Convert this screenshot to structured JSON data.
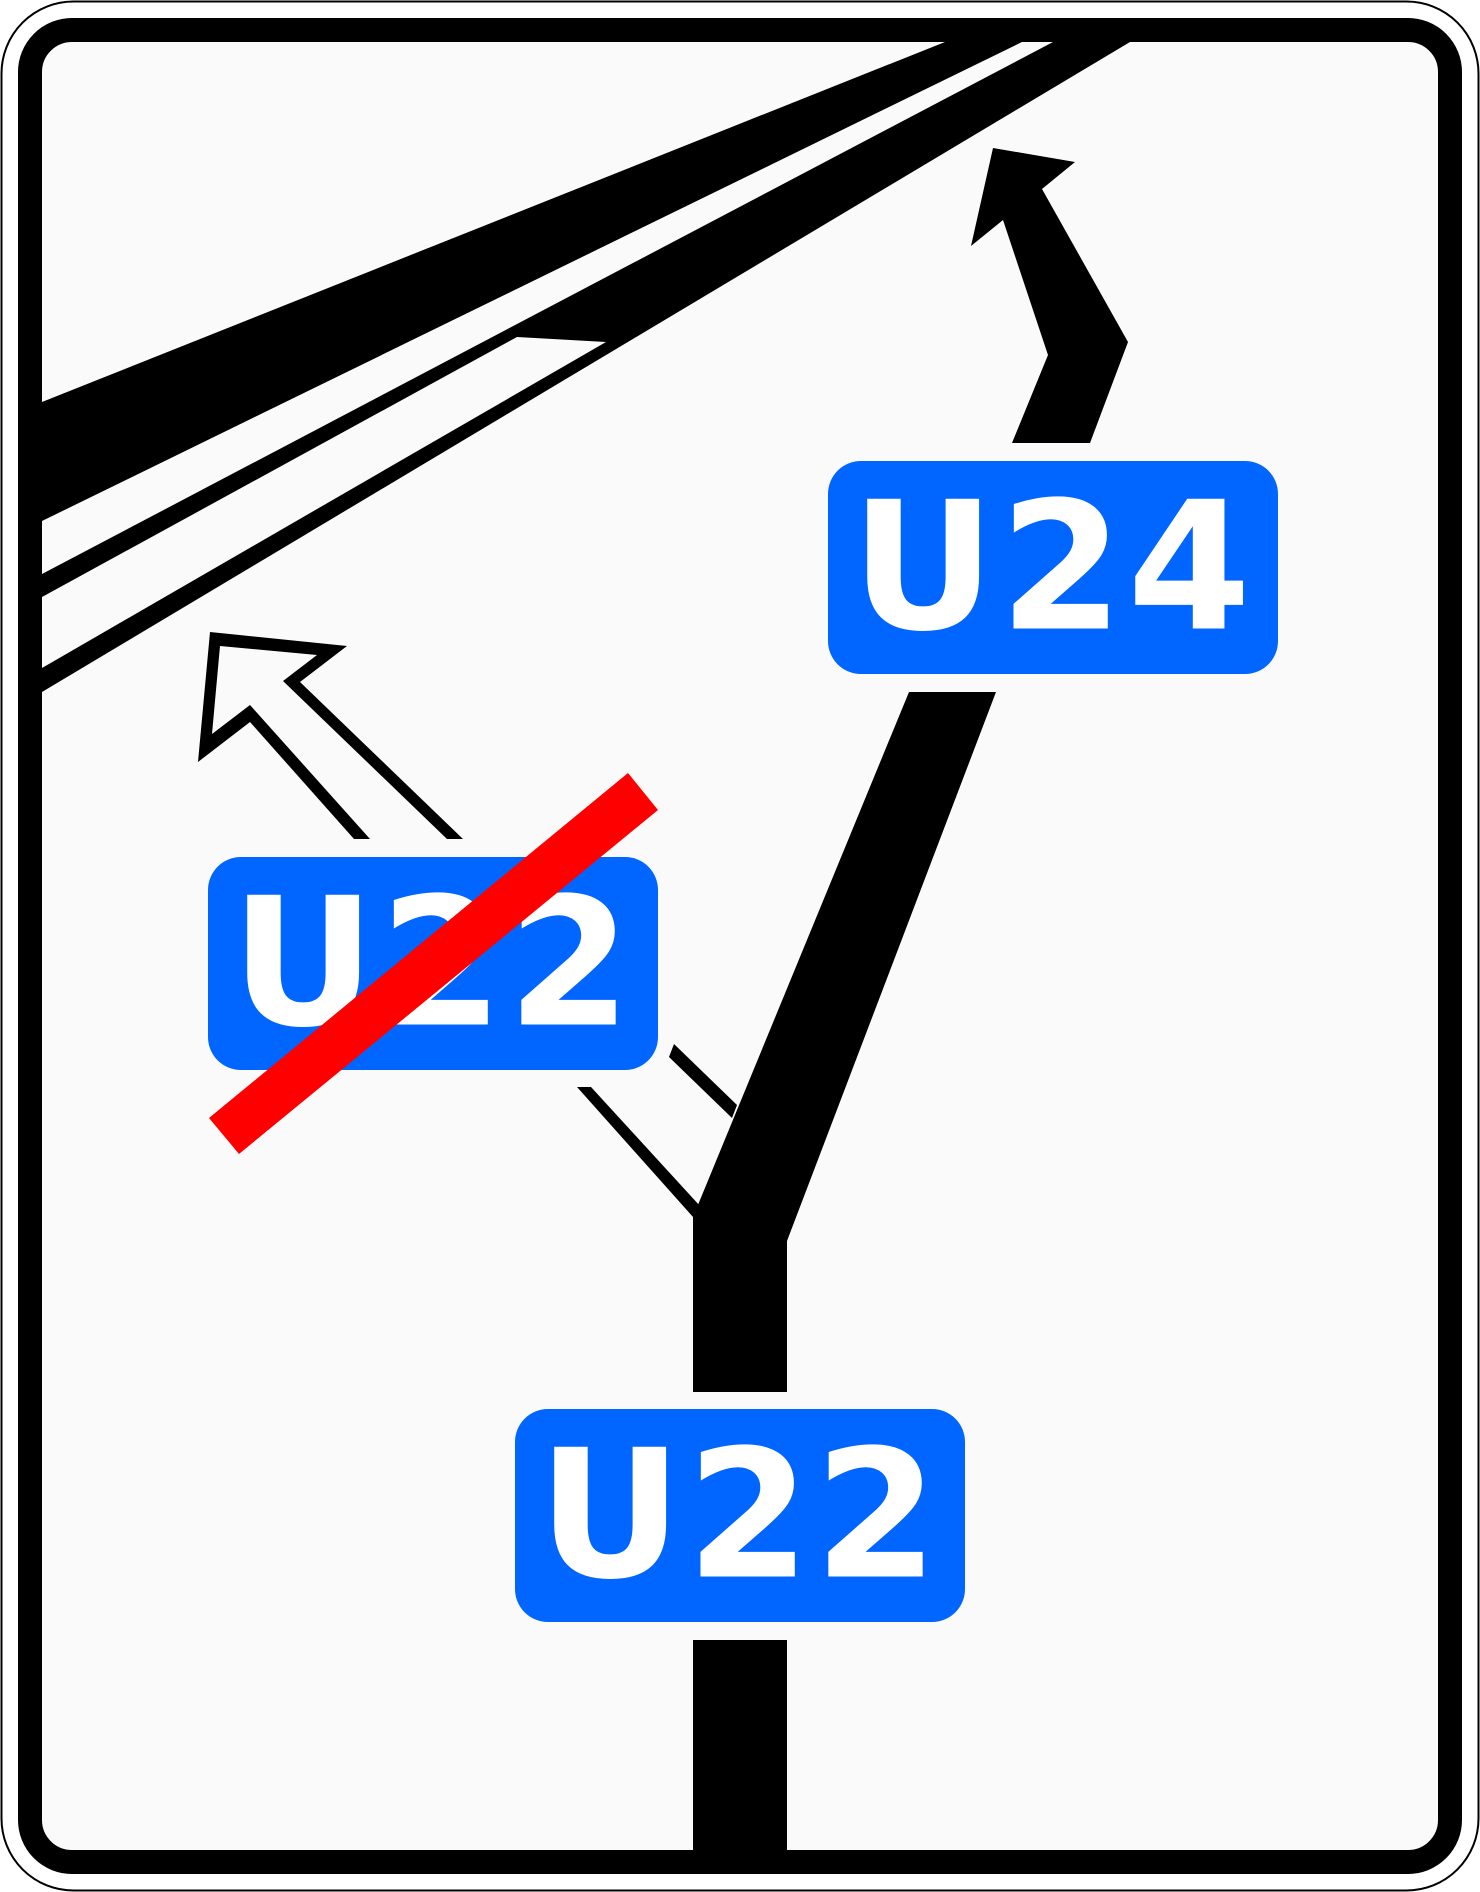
{
  "sign": {
    "background_color": "#fafafa",
    "border_color": "#000000",
    "panel_color": "#0066ff",
    "text_color": "#ffffff",
    "strike_color": "#ff0000"
  },
  "routes": {
    "right_exit": {
      "label": "U24"
    },
    "left_exit_closed": {
      "label": "U22",
      "status": "closed"
    },
    "straight_main": {
      "label": "U22"
    }
  },
  "icons": {
    "arrow_right": "arrow-up-right-icon",
    "arrow_left": "arrow-up-left-outline-icon",
    "strike": "red-strike-icon"
  }
}
